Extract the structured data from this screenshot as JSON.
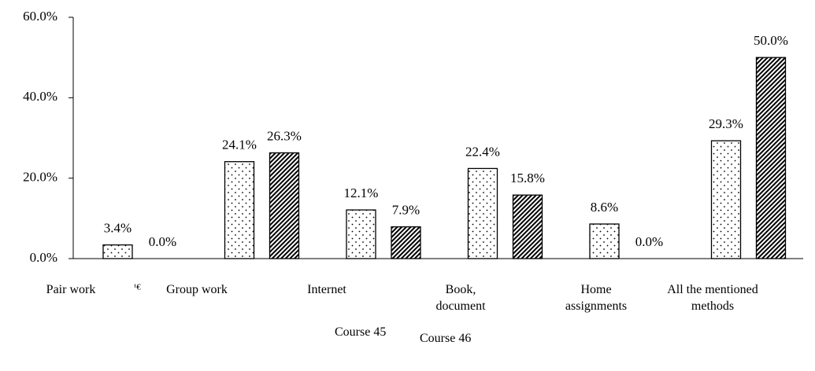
{
  "chart_data": {
    "type": "bar",
    "categories": [
      "Pair work",
      "Group work",
      "Internet",
      "Book, document",
      "Home assignments",
      "All the mentioned methods"
    ],
    "series": [
      {
        "name": "Course 45",
        "color": "#000000",
        "pattern": "dots",
        "values": [
          3.4,
          24.1,
          12.1,
          22.4,
          8.6,
          29.3
        ],
        "value_labels": [
          "3.4%",
          "24.1%",
          "12.1%",
          "22.4%",
          "8.6%",
          "29.3%"
        ]
      },
      {
        "name": "Course 46",
        "color": "#000000",
        "pattern": "hatch",
        "values": [
          0.0,
          26.3,
          7.9,
          15.8,
          0.0,
          50.0
        ],
        "value_labels": [
          "0.0%",
          "26.3%",
          "7.9%",
          "15.8%",
          "0.0%",
          "50.0%"
        ]
      }
    ],
    "annotation": "¹€",
    "ylim": [
      0,
      60
    ],
    "yticks": [
      {
        "value": 0,
        "label": "0.0%"
      },
      {
        "value": 20,
        "label": "20.0%"
      },
      {
        "value": 40,
        "label": "40.0%"
      },
      {
        "value": 60,
        "label": "60.0%"
      }
    ],
    "grid": false
  }
}
